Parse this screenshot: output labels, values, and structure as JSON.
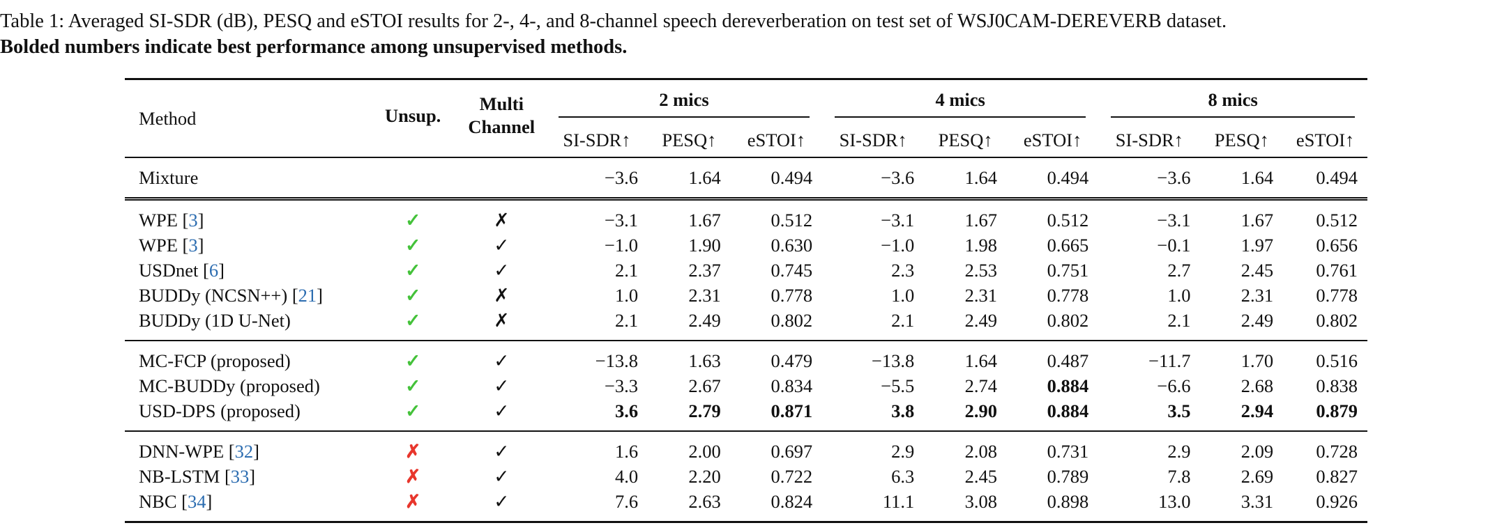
{
  "caption": {
    "line1": "Table 1: Averaged SI-SDR (dB), PESQ and eSTOI results for 2-, 4-, and 8-channel speech dereverberation on test set of WSJ0CAM-DEREVERB dataset.",
    "line2": "Bolded numbers indicate best performance among unsupervised methods."
  },
  "headers": {
    "method": "Method",
    "unsup": "Unsup.",
    "multi1": "Multi",
    "multi2": "Channel",
    "groups": [
      "2 mics",
      "4 mics",
      "8 mics"
    ],
    "metrics": [
      "SI-SDR↑",
      "PESQ↑",
      "eSTOI↑"
    ]
  },
  "rows": [
    {
      "method": "Mixture",
      "ref": "",
      "unsup": "",
      "multi": "",
      "values": [
        "−3.6",
        "1.64",
        "0.494",
        "−3.6",
        "1.64",
        "0.494",
        "−3.6",
        "1.64",
        "0.494"
      ]
    },
    {
      "method": "WPE [",
      "ref": "3",
      "unsup": "✓",
      "multi": "✗",
      "values": [
        "−3.1",
        "1.67",
        "0.512",
        "−3.1",
        "1.67",
        "0.512",
        "−3.1",
        "1.67",
        "0.512"
      ]
    },
    {
      "method": "WPE [",
      "ref": "3",
      "unsup": "✓",
      "multi": "✓",
      "values": [
        "−1.0",
        "1.90",
        "0.630",
        "−1.0",
        "1.98",
        "0.665",
        "−0.1",
        "1.97",
        "0.656"
      ]
    },
    {
      "method": "USDnet [",
      "ref": "6",
      "unsup": "✓",
      "multi": "✓",
      "values": [
        "2.1",
        "2.37",
        "0.745",
        "2.3",
        "2.53",
        "0.751",
        "2.7",
        "2.45",
        "0.761"
      ]
    },
    {
      "method": "BUDDy (NCSN++) [",
      "ref": "21",
      "unsup": "✓",
      "multi": "✗",
      "values": [
        "1.0",
        "2.31",
        "0.778",
        "1.0",
        "2.31",
        "0.778",
        "1.0",
        "2.31",
        "0.778"
      ]
    },
    {
      "method": "BUDDy (1D U-Net)",
      "ref": "",
      "unsup": "✓",
      "multi": "✗",
      "values": [
        "2.1",
        "2.49",
        "0.802",
        "2.1",
        "2.49",
        "0.802",
        "2.1",
        "2.49",
        "0.802"
      ]
    },
    {
      "method": "MC-FCP (proposed)",
      "ref": "",
      "unsup": "✓",
      "multi": "✓",
      "values": [
        "−13.8",
        "1.63",
        "0.479",
        "−13.8",
        "1.64",
        "0.487",
        "−11.7",
        "1.70",
        "0.516"
      ]
    },
    {
      "method": "MC-BUDDy (proposed)",
      "ref": "",
      "unsup": "✓",
      "multi": "✓",
      "values": [
        "−3.3",
        "2.67",
        "0.834",
        "−5.5",
        "2.74",
        "0.884",
        "−6.6",
        "2.68",
        "0.838"
      ]
    },
    {
      "method": "USD-DPS (proposed)",
      "ref": "",
      "unsup": "✓",
      "multi": "✓",
      "values": [
        "3.6",
        "2.79",
        "0.871",
        "3.8",
        "2.90",
        "0.884",
        "3.5",
        "2.94",
        "0.879"
      ]
    },
    {
      "method": "DNN-WPE [",
      "ref": "32",
      "unsup": "✗",
      "multi": "✓",
      "values": [
        "1.6",
        "2.00",
        "0.697",
        "2.9",
        "2.08",
        "0.731",
        "2.9",
        "2.09",
        "0.728"
      ]
    },
    {
      "method": "NB-LSTM [",
      "ref": "33",
      "unsup": "✗",
      "multi": "✓",
      "values": [
        "4.0",
        "2.20",
        "0.722",
        "6.3",
        "2.45",
        "0.789",
        "7.8",
        "2.69",
        "0.827"
      ]
    },
    {
      "method": "NBC [",
      "ref": "34",
      "unsup": "✗",
      "multi": "✓",
      "values": [
        "7.6",
        "2.63",
        "0.824",
        "11.1",
        "3.08",
        "0.898",
        "13.0",
        "3.31",
        "0.926"
      ]
    }
  ],
  "bold_cells": {
    "7": [
      5
    ],
    "8": [
      0,
      1,
      2,
      3,
      4,
      5,
      6,
      7,
      8
    ]
  },
  "colors": {
    "check": "#44c23a",
    "cross": "#e8362c",
    "ref": "#2b6cb0"
  }
}
